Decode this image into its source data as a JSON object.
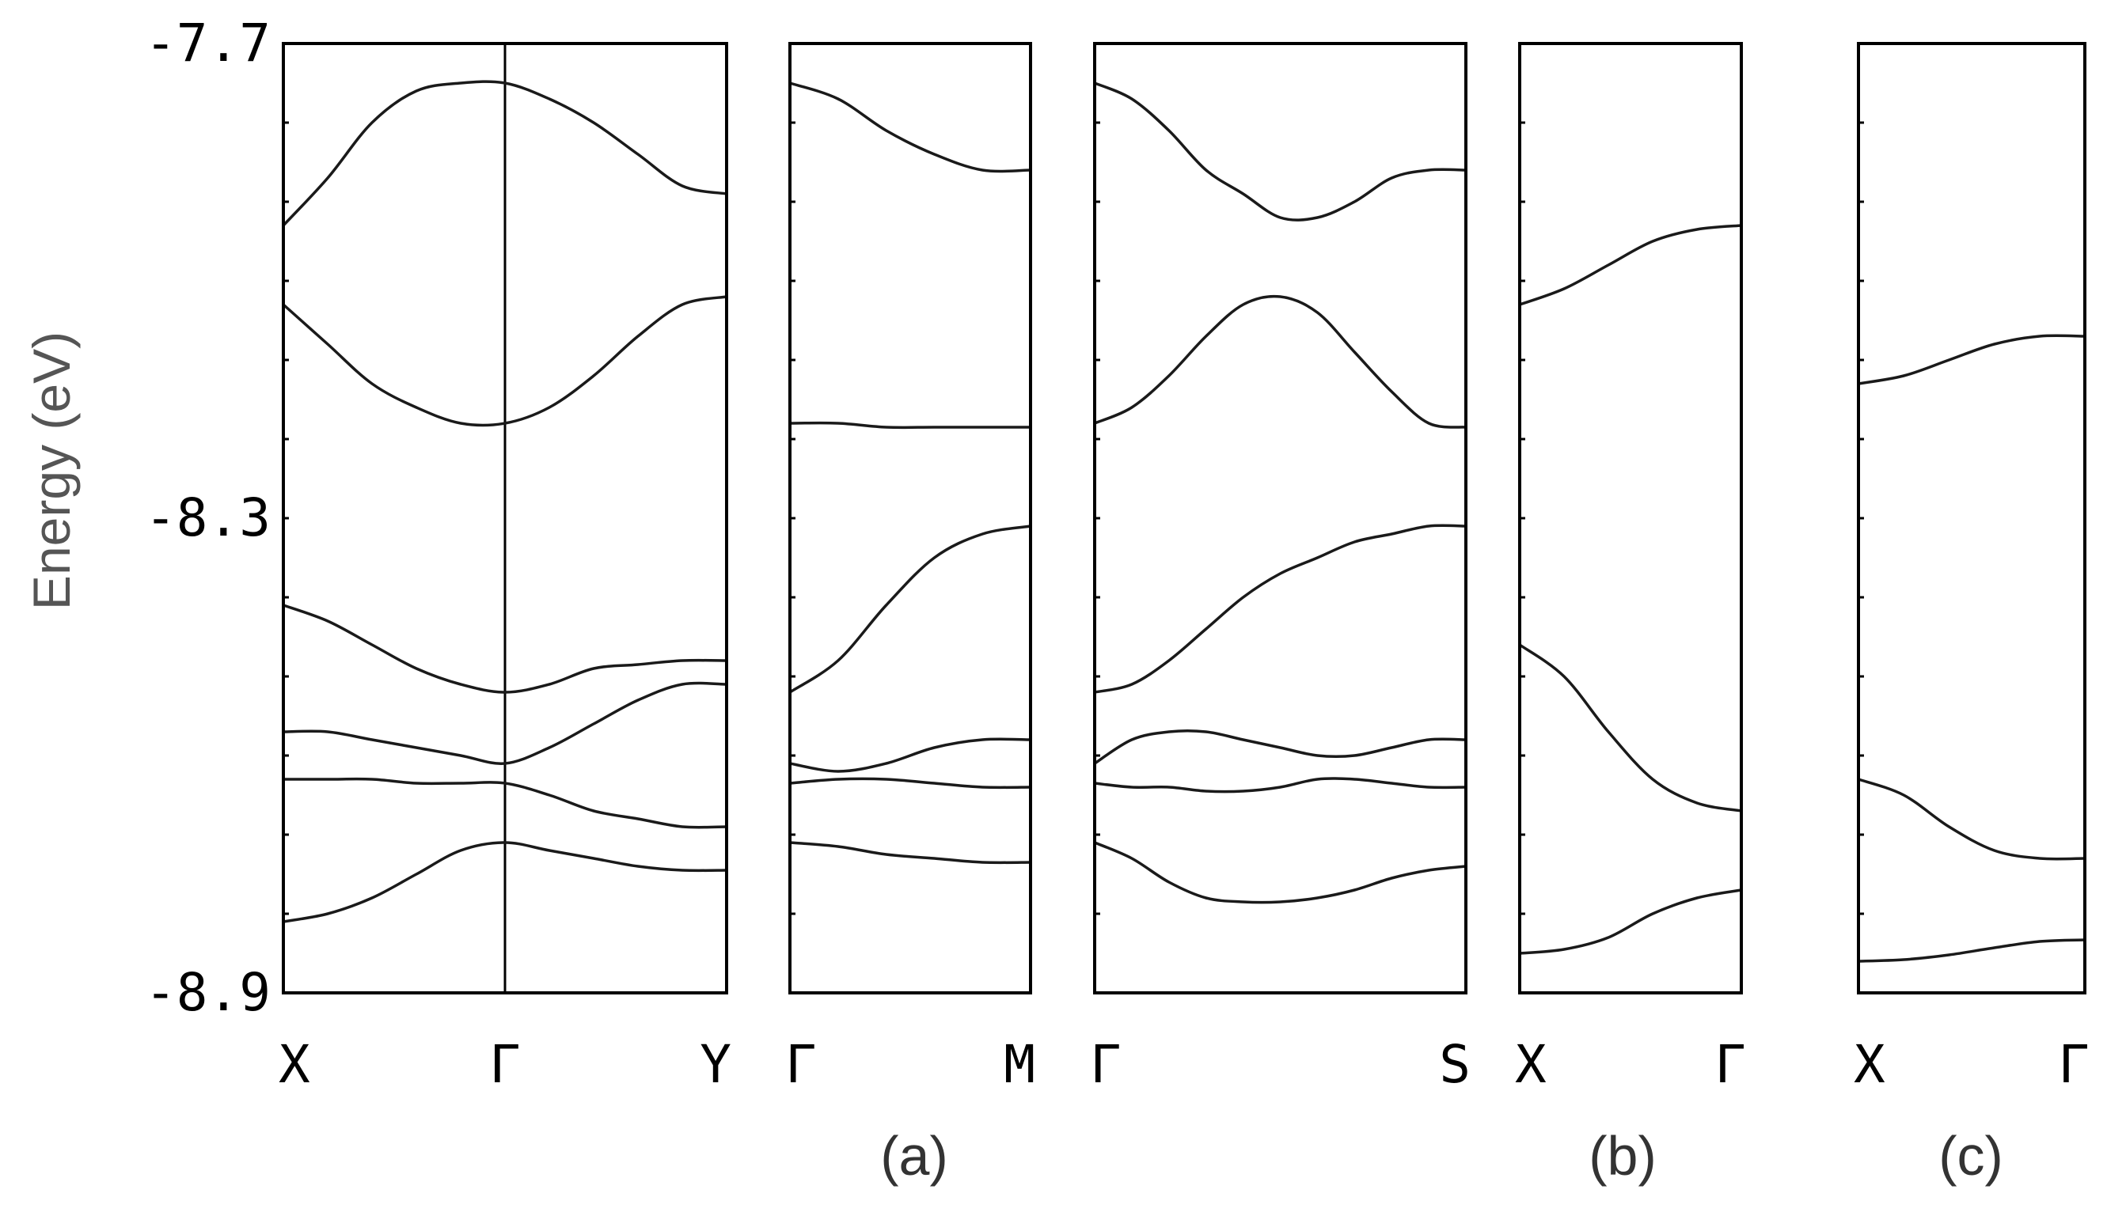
{
  "chart_data": {
    "type": "line",
    "ylabel": "Energy (eV)",
    "ylim": [
      -8.9,
      -7.7
    ],
    "yticks": [
      "-7.7",
      "-8.3",
      "-8.9"
    ],
    "panel_labels": [
      "(a)",
      "(b)",
      "(c)"
    ],
    "panels": [
      {
        "group": "(a)",
        "k_labels": [
          "X",
          "Γ",
          "Y"
        ],
        "inner_lines": [
          0.5
        ],
        "bands": [
          {
            "x": [
              0,
              0.1,
              0.2,
              0.3,
              0.4,
              0.5,
              0.6,
              0.7,
              0.8,
              0.9,
              1.0
            ],
            "y": [
              -7.93,
              -7.87,
              -7.8,
              -7.76,
              -7.75,
              -7.75,
              -7.77,
              -7.8,
              -7.84,
              -7.88,
              -7.89
            ]
          },
          {
            "x": [
              0,
              0.1,
              0.2,
              0.3,
              0.4,
              0.5,
              0.6,
              0.7,
              0.8,
              0.9,
              1.0
            ],
            "y": [
              -8.03,
              -8.08,
              -8.13,
              -8.16,
              -8.18,
              -8.18,
              -8.16,
              -8.12,
              -8.07,
              -8.03,
              -8.02
            ]
          },
          {
            "x": [
              0,
              0.1,
              0.2,
              0.3,
              0.4,
              0.5,
              0.6,
              0.7,
              0.8,
              0.9,
              1.0
            ],
            "y": [
              -8.41,
              -8.43,
              -8.46,
              -8.49,
              -8.51,
              -8.52,
              -8.51,
              -8.49,
              -8.485,
              -8.48,
              -8.48
            ]
          },
          {
            "x": [
              0,
              0.1,
              0.2,
              0.3,
              0.4,
              0.5,
              0.6,
              0.7,
              0.8,
              0.9,
              1.0
            ],
            "y": [
              -8.57,
              -8.57,
              -8.58,
              -8.59,
              -8.6,
              -8.61,
              -8.59,
              -8.56,
              -8.53,
              -8.51,
              -8.51
            ]
          },
          {
            "x": [
              0,
              0.1,
              0.2,
              0.3,
              0.4,
              0.5,
              0.6,
              0.7,
              0.8,
              0.9,
              1.0
            ],
            "y": [
              -8.63,
              -8.63,
              -8.63,
              -8.635,
              -8.635,
              -8.635,
              -8.65,
              -8.67,
              -8.68,
              -8.69,
              -8.69
            ]
          },
          {
            "x": [
              0,
              0.1,
              0.2,
              0.3,
              0.4,
              0.5,
              0.6,
              0.7,
              0.8,
              0.9,
              1.0
            ],
            "y": [
              -8.81,
              -8.8,
              -8.78,
              -8.75,
              -8.72,
              -8.71,
              -8.72,
              -8.73,
              -8.74,
              -8.745,
              -8.745
            ]
          }
        ]
      },
      {
        "group": "(a)",
        "k_labels": [
          "Γ",
          "M"
        ],
        "inner_lines": [],
        "bands": [
          {
            "x": [
              0,
              0.2,
              0.4,
              0.6,
              0.8,
              1.0
            ],
            "y": [
              -7.75,
              -7.77,
              -7.81,
              -7.84,
              -7.86,
              -7.86
            ]
          },
          {
            "x": [
              0,
              0.2,
              0.4,
              0.6,
              0.8,
              1.0
            ],
            "y": [
              -8.18,
              -8.18,
              -8.185,
              -8.185,
              -8.185,
              -8.185
            ]
          },
          {
            "x": [
              0,
              0.2,
              0.4,
              0.6,
              0.8,
              1.0
            ],
            "y": [
              -8.52,
              -8.48,
              -8.41,
              -8.35,
              -8.32,
              -8.31
            ]
          },
          {
            "x": [
              0,
              0.2,
              0.4,
              0.6,
              0.8,
              1.0
            ],
            "y": [
              -8.61,
              -8.62,
              -8.61,
              -8.59,
              -8.58,
              -8.58
            ]
          },
          {
            "x": [
              0,
              0.2,
              0.4,
              0.6,
              0.8,
              1.0
            ],
            "y": [
              -8.635,
              -8.63,
              -8.63,
              -8.635,
              -8.64,
              -8.64
            ]
          },
          {
            "x": [
              0,
              0.2,
              0.4,
              0.6,
              0.8,
              1.0
            ],
            "y": [
              -8.71,
              -8.715,
              -8.725,
              -8.73,
              -8.735,
              -8.735
            ]
          }
        ]
      },
      {
        "group": "(a)",
        "k_labels": [
          "Γ",
          "S"
        ],
        "inner_lines": [],
        "bands": [
          {
            "x": [
              0,
              0.1,
              0.2,
              0.3,
              0.4,
              0.5,
              0.6,
              0.7,
              0.8,
              0.9,
              1.0
            ],
            "y": [
              -7.75,
              -7.77,
              -7.81,
              -7.86,
              -7.89,
              -7.92,
              -7.92,
              -7.9,
              -7.87,
              -7.86,
              -7.86
            ]
          },
          {
            "x": [
              0,
              0.1,
              0.2,
              0.3,
              0.4,
              0.5,
              0.6,
              0.7,
              0.8,
              0.9,
              1.0
            ],
            "y": [
              -8.18,
              -8.16,
              -8.12,
              -8.07,
              -8.03,
              -8.02,
              -8.04,
              -8.09,
              -8.14,
              -8.18,
              -8.185
            ]
          },
          {
            "x": [
              0,
              0.1,
              0.2,
              0.3,
              0.4,
              0.5,
              0.6,
              0.7,
              0.8,
              0.9,
              1.0
            ],
            "y": [
              -8.52,
              -8.51,
              -8.48,
              -8.44,
              -8.4,
              -8.37,
              -8.35,
              -8.33,
              -8.32,
              -8.31,
              -8.31
            ]
          },
          {
            "x": [
              0,
              0.1,
              0.2,
              0.3,
              0.4,
              0.5,
              0.6,
              0.7,
              0.8,
              0.9,
              1.0
            ],
            "y": [
              -8.61,
              -8.58,
              -8.57,
              -8.57,
              -8.58,
              -8.59,
              -8.6,
              -8.6,
              -8.59,
              -8.58,
              -8.58
            ]
          },
          {
            "x": [
              0,
              0.1,
              0.2,
              0.3,
              0.4,
              0.5,
              0.6,
              0.7,
              0.8,
              0.9,
              1.0
            ],
            "y": [
              -8.635,
              -8.64,
              -8.64,
              -8.645,
              -8.645,
              -8.64,
              -8.63,
              -8.63,
              -8.635,
              -8.64,
              -8.64
            ]
          },
          {
            "x": [
              0,
              0.1,
              0.2,
              0.3,
              0.4,
              0.5,
              0.6,
              0.7,
              0.8,
              0.9,
              1.0
            ],
            "y": [
              -8.71,
              -8.73,
              -8.76,
              -8.78,
              -8.785,
              -8.785,
              -8.78,
              -8.77,
              -8.755,
              -8.745,
              -8.74
            ]
          }
        ]
      },
      {
        "group": "(b)",
        "k_labels": [
          "X",
          "Γ"
        ],
        "inner_lines": [],
        "bands": [
          {
            "x": [
              0,
              0.2,
              0.4,
              0.6,
              0.8,
              1.0
            ],
            "y": [
              -8.03,
              -8.01,
              -7.98,
              -7.95,
              -7.935,
              -7.93
            ]
          },
          {
            "x": [
              0,
              0.2,
              0.4,
              0.6,
              0.8,
              1.0
            ],
            "y": [
              -8.46,
              -8.5,
              -8.57,
              -8.63,
              -8.66,
              -8.67
            ]
          },
          {
            "x": [
              0,
              0.2,
              0.4,
              0.6,
              0.8,
              1.0
            ],
            "y": [
              -8.85,
              -8.845,
              -8.83,
              -8.8,
              -8.78,
              -8.77
            ]
          }
        ]
      },
      {
        "group": "(c)",
        "k_labels": [
          "X",
          "Γ"
        ],
        "inner_lines": [],
        "bands": [
          {
            "x": [
              0,
              0.2,
              0.4,
              0.6,
              0.8,
              1.0
            ],
            "y": [
              -8.13,
              -8.12,
              -8.1,
              -8.08,
              -8.07,
              -8.07
            ]
          },
          {
            "x": [
              0,
              0.2,
              0.4,
              0.6,
              0.8,
              1.0
            ],
            "y": [
              -8.63,
              -8.65,
              -8.69,
              -8.72,
              -8.73,
              -8.73
            ]
          },
          {
            "x": [
              0,
              0.2,
              0.4,
              0.6,
              0.8,
              1.0
            ],
            "y": [
              -8.86,
              -8.858,
              -8.852,
              -8.843,
              -8.835,
              -8.833
            ]
          }
        ]
      }
    ]
  }
}
